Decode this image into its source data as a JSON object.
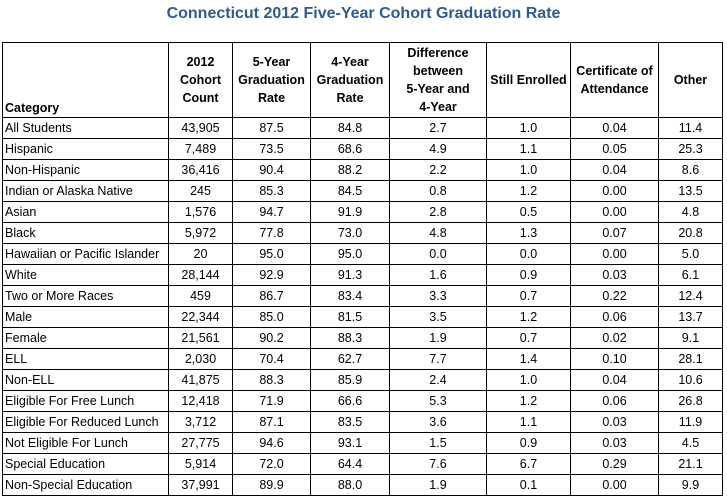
{
  "title": "Connecticut 2012 Five-Year Cohort Graduation Rate",
  "table": {
    "header": [
      "Category",
      "2012\nCohort\nCount",
      "5-Year\nGraduation\nRate",
      "4-Year\nGraduation\nRate",
      "Difference\nbetween\n5-Year and\n4-Year",
      "Still Enrolled",
      "Certificate of\nAttendance",
      "Other"
    ],
    "rows": [
      [
        "All Students",
        "43,905",
        "87.5",
        "84.8",
        "2.7",
        "1.0",
        "0.04",
        "11.4"
      ],
      [
        "Hispanic",
        "7,489",
        "73.5",
        "68.6",
        "4.9",
        "1.1",
        "0.05",
        "25.3"
      ],
      [
        "Non-Hispanic",
        "36,416",
        "90.4",
        "88.2",
        "2.2",
        "1.0",
        "0.04",
        "8.6"
      ],
      [
        "Indian or Alaska Native",
        "245",
        "85.3",
        "84.5",
        "0.8",
        "1.2",
        "0.00",
        "13.5"
      ],
      [
        "Asian",
        "1,576",
        "94.7",
        "91.9",
        "2.8",
        "0.5",
        "0.00",
        "4.8"
      ],
      [
        "Black",
        "5,972",
        "77.8",
        "73.0",
        "4.8",
        "1.3",
        "0.07",
        "20.8"
      ],
      [
        "Hawaiian or Pacific Islander",
        "20",
        "95.0",
        "95.0",
        "0.0",
        "0.0",
        "0.00",
        "5.0"
      ],
      [
        "White",
        "28,144",
        "92.9",
        "91.3",
        "1.6",
        "0.9",
        "0.03",
        "6.1"
      ],
      [
        "Two or More Races",
        "459",
        "86.7",
        "83.4",
        "3.3",
        "0.7",
        "0.22",
        "12.4"
      ],
      [
        "Male",
        "22,344",
        "85.0",
        "81.5",
        "3.5",
        "1.2",
        "0.06",
        "13.7"
      ],
      [
        "Female",
        "21,561",
        "90.2",
        "88.3",
        "1.9",
        "0.7",
        "0.02",
        "9.1"
      ],
      [
        "ELL",
        "2,030",
        "70.4",
        "62.7",
        "7.7",
        "1.4",
        "0.10",
        "28.1"
      ],
      [
        "Non-ELL",
        "41,875",
        "88.3",
        "85.9",
        "2.4",
        "1.0",
        "0.04",
        "10.6"
      ],
      [
        "Eligible For Free Lunch",
        "12,418",
        "71.9",
        "66.6",
        "5.3",
        "1.2",
        "0.06",
        "26.8"
      ],
      [
        "Eligible For Reduced Lunch",
        "3,712",
        "87.1",
        "83.5",
        "3.6",
        "1.1",
        "0.03",
        "11.9"
      ],
      [
        "Not Eligible For Lunch",
        "27,775",
        "94.6",
        "93.1",
        "1.5",
        "0.9",
        "0.03",
        "4.5"
      ],
      [
        "Special Education",
        "5,914",
        "72.0",
        "64.4",
        "7.6",
        "6.7",
        "0.29",
        "21.1"
      ],
      [
        "Non-Special Education",
        "37,991",
        "89.9",
        "88.0",
        "1.9",
        "0.1",
        "0.00",
        "9.9"
      ]
    ]
  }
}
